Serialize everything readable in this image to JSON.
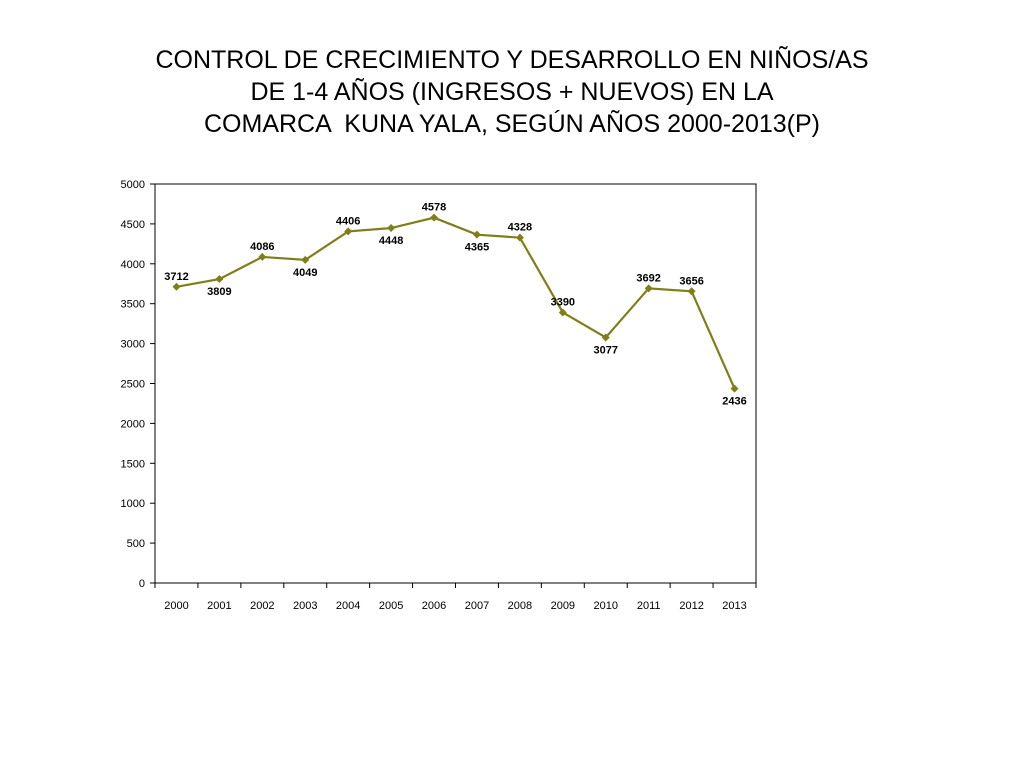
{
  "chart_data": {
    "type": "line",
    "title_lines": [
      "CONTROL DE CRECIMIENTO Y DESARROLLO EN NIÑOS/AS",
      "DE 1-4 AÑOS (INGRESOS + NUEVOS) EN LA",
      "COMARCA  KUNA YALA, SEGÚN AÑOS 2000-2013(P)"
    ],
    "categories": [
      "2000",
      "2001",
      "2002",
      "2003",
      "2004",
      "2005",
      "2006",
      "2007",
      "2008",
      "2009",
      "2010",
      "2011",
      "2012",
      "2013"
    ],
    "series": [
      {
        "values": [
          3712,
          3809,
          4086,
          4049,
          4406,
          4448,
          4578,
          4365,
          4328,
          3390,
          3077,
          3692,
          3656,
          2436
        ]
      }
    ],
    "data_labels": [
      "3712",
      "3809",
      "4086",
      "4049",
      "4406",
      "4448",
      "4578",
      "4365",
      "4328",
      "3390",
      "3077",
      "3692",
      "3656",
      "2436"
    ],
    "y_ticks": [
      "0",
      "500",
      "1000",
      "1500",
      "2000",
      "2500",
      "3000",
      "3500",
      "4000",
      "4500",
      "5000"
    ],
    "ylim": [
      0,
      5000
    ],
    "grid": false,
    "legend": "none",
    "line_color": "#7f7f1a",
    "xlabel": "",
    "ylabel": ""
  }
}
